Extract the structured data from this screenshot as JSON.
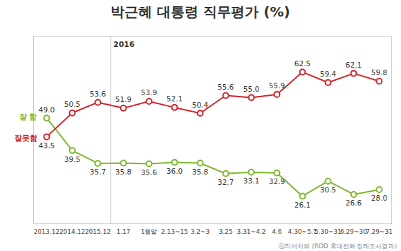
{
  "chart_data": {
    "type": "line",
    "title": "박근혜 대통령 직무평가 (%)",
    "source": "ⓒ리서치뷰 (RDD 휴대전화 정례조사결과)",
    "categories": [
      "2013.12",
      "2014.12",
      "2015.12",
      "1.17",
      "1월말",
      "2.13~15",
      "3.2~3",
      "3.25",
      "3.31~4.2",
      "4.6",
      "4.30~5.1",
      "5.30~31",
      "6.29~30",
      "7.29~31"
    ],
    "series": [
      {
        "name": "잘 함",
        "color": "#7ab829",
        "marker": "circle",
        "values": [
          49.0,
          39.5,
          35.7,
          35.8,
          35.6,
          36.0,
          35.8,
          32.7,
          33.1,
          32.9,
          26.1,
          30.5,
          26.6,
          28.0
        ],
        "value_labels": [
          "49.0",
          "39.5",
          "35.7",
          "35.8",
          "35.6",
          "36.0",
          "35.8",
          "32.7",
          "33.1",
          "32.9",
          "26.1",
          "30.5",
          "26.6",
          "28.0"
        ]
      },
      {
        "name": "잘못함",
        "color": "#d2232a",
        "marker": "circle",
        "values": [
          43.5,
          50.5,
          53.6,
          51.9,
          53.9,
          52.1,
          50.4,
          55.6,
          55.0,
          55.9,
          62.5,
          59.4,
          62.1,
          59.8
        ],
        "value_labels": [
          "43.5",
          "50.5",
          "53.6",
          "51.9",
          "53.9",
          "52.1",
          "50.4",
          "55.6",
          "55.0",
          "55.9",
          "62.5",
          "59.4",
          "62.1",
          "59.8"
        ]
      }
    ],
    "ylim": [
      18,
      73
    ],
    "data_labels": true,
    "tick_labels": "x",
    "legend": "left",
    "annotations": [
      {
        "text": "2016",
        "category": "1.17"
      }
    ]
  }
}
